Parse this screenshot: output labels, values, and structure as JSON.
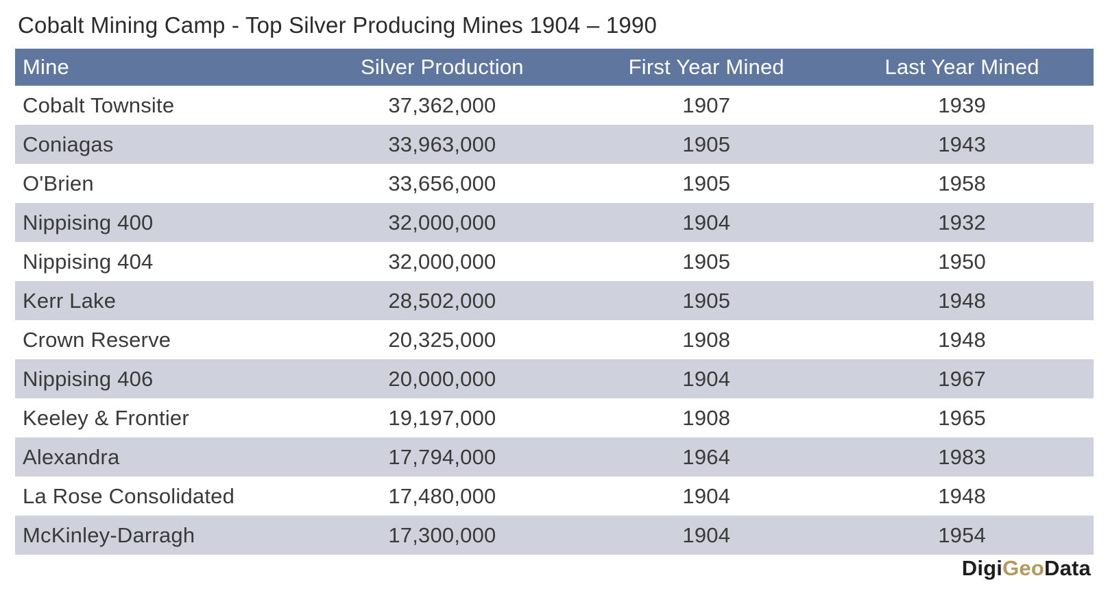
{
  "title": "Cobalt Mining Camp - Top Silver Producing Mines 1904 – 1990",
  "chart_data": {
    "type": "table",
    "title": "Cobalt Mining Camp - Top Silver Producing Mines 1904 – 1990",
    "columns": [
      "Mine",
      "Silver Production",
      "First Year Mined",
      "Last Year Mined"
    ],
    "rows": [
      [
        "Cobalt Townsite",
        "37,362,000",
        "1907",
        "1939"
      ],
      [
        "Coniagas",
        "33,963,000",
        "1905",
        "1943"
      ],
      [
        "O'Brien",
        "33,656,000",
        "1905",
        "1958"
      ],
      [
        "Nippising 400",
        "32,000,000",
        "1904",
        "1932"
      ],
      [
        "Nippising 404",
        "32,000,000",
        "1905",
        "1950"
      ],
      [
        "Kerr Lake",
        "28,502,000",
        "1905",
        "1948"
      ],
      [
        "Crown Reserve",
        "20,325,000",
        "1908",
        "1948"
      ],
      [
        "Nippising 406",
        "20,000,000",
        "1904",
        "1967"
      ],
      [
        "Keeley & Frontier",
        "19,197,000",
        "1908",
        "1965"
      ],
      [
        "Alexandra",
        "17,794,000",
        "1964",
        "1983"
      ],
      [
        "La Rose Consolidated",
        "17,480,000",
        "1904",
        "1948"
      ],
      [
        "McKinley-Darragh",
        "17,300,000",
        "1904",
        "1954"
      ]
    ],
    "silver_production_values": [
      37362000,
      33963000,
      33656000,
      32000000,
      32000000,
      28502000,
      20325000,
      20000000,
      19197000,
      17794000,
      17480000,
      17300000
    ]
  },
  "footer": {
    "brand_digi": "Digi",
    "brand_geo": "Geo",
    "brand_data": "Data"
  },
  "colors": {
    "header_bg": "#5f779e",
    "header_text": "#ffffff",
    "row_alt_bg": "#cfd1dd",
    "row_bg": "#ffffff",
    "body_text": "#3a3a3a",
    "brand_gold": "#b29a5c",
    "brand_dark": "#1d1d1d"
  }
}
